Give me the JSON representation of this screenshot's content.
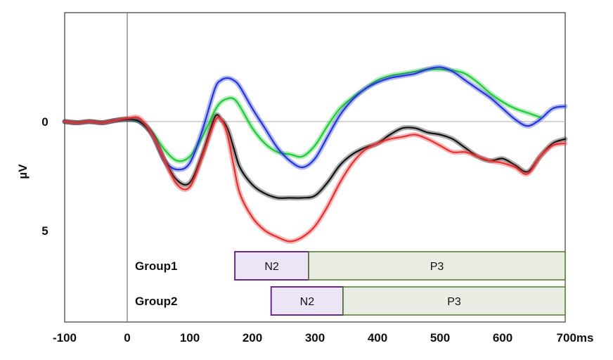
{
  "chart_data": {
    "type": "line",
    "title": "",
    "xlabel": "",
    "ylabel": "µV",
    "x_unit": "ms",
    "xlim": [
      -100,
      700
    ],
    "ylim": [
      -5.0,
      9.2
    ],
    "y_inverted": true,
    "x_ticks": [
      -100,
      0,
      100,
      200,
      300,
      400,
      500,
      600,
      700
    ],
    "y_ticks": [
      0,
      5
    ],
    "grid": false,
    "legend": "none",
    "zero_line": true,
    "stimulus_onset_line": 0,
    "series": [
      {
        "color": "#22c93a",
        "x": [
          -100,
          -80,
          -60,
          -40,
          -20,
          0,
          20,
          40,
          60,
          80,
          100,
          120,
          140,
          150,
          160,
          170,
          180,
          200,
          220,
          240,
          260,
          280,
          300,
          320,
          340,
          360,
          380,
          400,
          420,
          440,
          460,
          480,
          500,
          520,
          540,
          560,
          580,
          600,
          620,
          640,
          660
        ],
        "y": [
          0,
          0.05,
          0,
          0.05,
          -0.05,
          -0.1,
          0,
          0.5,
          1.3,
          1.8,
          1.6,
          0.7,
          -0.5,
          -0.9,
          -1.05,
          -1.05,
          -0.7,
          0.3,
          1.0,
          1.4,
          1.5,
          1.6,
          1.1,
          0.2,
          -0.6,
          -1.1,
          -1.5,
          -1.9,
          -2.1,
          -2.2,
          -2.3,
          -2.4,
          -2.4,
          -2.35,
          -2.2,
          -1.8,
          -1.3,
          -0.9,
          -0.6,
          -0.4,
          -0.2
        ]
      },
      {
        "color": "#2636d6",
        "x": [
          -100,
          -80,
          -60,
          -40,
          -20,
          0,
          20,
          40,
          60,
          80,
          100,
          120,
          140,
          150,
          160,
          170,
          180,
          200,
          220,
          240,
          260,
          280,
          300,
          320,
          340,
          360,
          380,
          400,
          420,
          440,
          460,
          480,
          500,
          520,
          540,
          560,
          580,
          600,
          620,
          640,
          660,
          680,
          700
        ],
        "y": [
          0,
          0.05,
          0,
          0.05,
          -0.05,
          -0.1,
          0,
          0.6,
          1.8,
          2.2,
          1.9,
          0.4,
          -1.5,
          -1.9,
          -2.0,
          -1.9,
          -1.6,
          -0.6,
          0.3,
          1.2,
          1.8,
          2.1,
          1.7,
          0.7,
          -0.3,
          -1.0,
          -1.5,
          -1.8,
          -2.0,
          -2.1,
          -2.2,
          -2.4,
          -2.5,
          -2.3,
          -1.9,
          -1.5,
          -1.1,
          -0.6,
          -0.1,
          0.2,
          -0.1,
          -0.6,
          -0.7
        ]
      },
      {
        "color": "#111111",
        "x": [
          -100,
          -80,
          -60,
          -40,
          -20,
          0,
          20,
          40,
          60,
          80,
          100,
          120,
          140,
          150,
          160,
          170,
          180,
          200,
          220,
          240,
          260,
          280,
          300,
          320,
          340,
          360,
          380,
          400,
          420,
          440,
          460,
          480,
          500,
          520,
          540,
          560,
          580,
          600,
          620,
          640,
          660,
          680,
          700
        ],
        "y": [
          0,
          0.05,
          0,
          0.05,
          -0.05,
          -0.1,
          0,
          0.6,
          1.8,
          2.7,
          2.8,
          1.5,
          -0.2,
          -0.1,
          0.3,
          1.2,
          2.1,
          2.9,
          3.3,
          3.5,
          3.5,
          3.5,
          3.4,
          2.8,
          2.0,
          1.5,
          1.2,
          1.0,
          0.6,
          0.3,
          0.3,
          0.5,
          0.6,
          0.8,
          1.2,
          1.6,
          1.8,
          1.7,
          2.0,
          2.3,
          1.6,
          1.0,
          0.8
        ]
      },
      {
        "color": "#e23232",
        "x": [
          -100,
          -80,
          -60,
          -40,
          -20,
          0,
          20,
          40,
          60,
          80,
          100,
          120,
          140,
          150,
          160,
          170,
          180,
          200,
          220,
          240,
          260,
          280,
          300,
          320,
          340,
          360,
          380,
          400,
          420,
          440,
          460,
          480,
          500,
          520,
          540,
          560,
          580,
          600,
          620,
          640,
          660,
          680,
          700
        ],
        "y": [
          0,
          0.05,
          0,
          0.05,
          -0.05,
          -0.15,
          -0.15,
          0.6,
          1.8,
          2.9,
          3.0,
          1.6,
          0.0,
          -0.1,
          0.6,
          2.0,
          3.3,
          4.4,
          5.0,
          5.3,
          5.5,
          5.3,
          4.8,
          3.9,
          2.8,
          1.9,
          1.3,
          1.0,
          0.8,
          0.7,
          0.6,
          0.8,
          1.1,
          1.4,
          1.4,
          1.6,
          1.8,
          1.9,
          2.1,
          2.4,
          1.6,
          1.1,
          1.0
        ]
      }
    ],
    "windows": [
      {
        "group": "Group1",
        "components": [
          {
            "label": "N2",
            "start": 172,
            "end": 290
          },
          {
            "label": "P3",
            "start": 290,
            "end": 700
          }
        ]
      },
      {
        "group": "Group2",
        "components": [
          {
            "label": "N2",
            "start": 230,
            "end": 345
          },
          {
            "label": "P3",
            "start": 345,
            "end": 700
          }
        ]
      }
    ],
    "window_colors": {
      "N2_fill": "#ebe5f5",
      "N2_border": "#6a2a8f",
      "P3_fill": "#e9ece3",
      "P3_border": "#4f7a2a"
    }
  }
}
